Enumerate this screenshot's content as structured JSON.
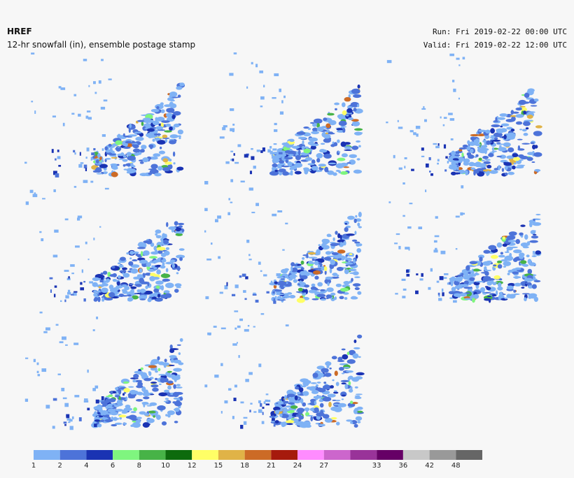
{
  "header": {
    "title": "HREF",
    "subtitle": "12-hr snowfall (in), ensemble postage stamp",
    "run": "Run: Fri 2019-02-22 00:00 UTC",
    "valid": "Valid: Fri 2019-02-22 12:00 UTC"
  },
  "colorbar": {
    "levels": [
      1,
      2,
      4,
      6,
      8,
      10,
      12,
      15,
      18,
      21,
      24,
      27,
      null,
      33,
      36,
      42,
      48
    ],
    "colors": [
      "#7fb2f5",
      "#4d73d9",
      "#1a33b3",
      "#7ff57f",
      "#47b347",
      "#0d6b0d",
      "#ffff66",
      "#e0b347",
      "#cc6b26",
      "#a61a0d",
      "#ff8cff",
      "#cc66cc",
      "#993399",
      "#660066",
      "#c8c8c8",
      "#999999",
      "#666666"
    ]
  }
}
